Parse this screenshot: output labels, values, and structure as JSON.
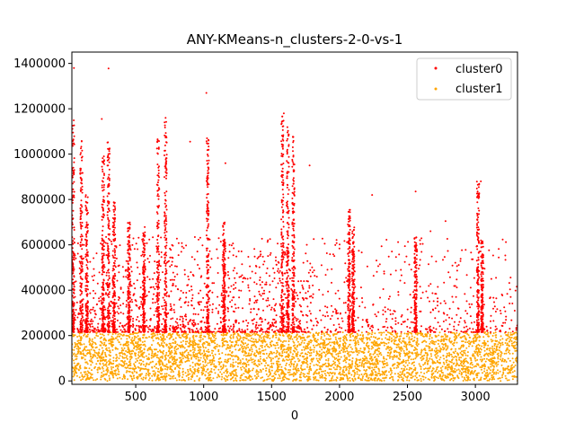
{
  "chart_data": {
    "type": "scatter",
    "title": "ANY-KMeans-n_clusters-2-0-vs-1",
    "xlabel": "0",
    "ylabel": "",
    "xlim": [
      30,
      3310
    ],
    "ylim": [
      -15000,
      1450000
    ],
    "xticks": [
      500,
      1000,
      1500,
      2000,
      2500,
      3000
    ],
    "yticks": [
      0,
      200000,
      400000,
      600000,
      800000,
      1000000,
      1200000,
      1400000
    ],
    "legend_position": "top-right",
    "threshold": 215000,
    "series": [
      {
        "name": "cluster0",
        "color": "#ff0000",
        "range": [
          215000,
          1380000
        ],
        "sample_points": [
          [
            45,
            1380000
          ],
          [
            300,
            1378000
          ],
          [
            1020,
            1270000
          ],
          [
            1590,
            1180000
          ],
          [
            720,
            1160000
          ],
          [
            250,
            1155000
          ],
          [
            2560,
            835000
          ],
          [
            3040,
            880000
          ],
          [
            2240,
            820000
          ],
          [
            2780,
            705000
          ],
          [
            2670,
            660000
          ],
          [
            1780,
            950000
          ],
          [
            1160,
            960000
          ],
          [
            900,
            1055000
          ]
        ]
      },
      {
        "name": "cluster1",
        "color": "#ffa500",
        "range": [
          0,
          215000
        ]
      }
    ],
    "spikes": [
      {
        "x": 40,
        "max": 1150000
      },
      {
        "x": 100,
        "max": 1060000
      },
      {
        "x": 140,
        "max": 820000
      },
      {
        "x": 260,
        "max": 1000000
      },
      {
        "x": 300,
        "max": 1080000
      },
      {
        "x": 340,
        "max": 800000
      },
      {
        "x": 450,
        "max": 700000
      },
      {
        "x": 560,
        "max": 680000
      },
      {
        "x": 665,
        "max": 1070000
      },
      {
        "x": 720,
        "max": 1160000
      },
      {
        "x": 1030,
        "max": 1070000
      },
      {
        "x": 1150,
        "max": 700000
      },
      {
        "x": 1580,
        "max": 1180000
      },
      {
        "x": 1620,
        "max": 1120000
      },
      {
        "x": 1660,
        "max": 1080000
      },
      {
        "x": 2070,
        "max": 760000
      },
      {
        "x": 2100,
        "max": 680000
      },
      {
        "x": 2560,
        "max": 640000
      },
      {
        "x": 3020,
        "max": 880000
      },
      {
        "x": 3050,
        "max": 620000
      }
    ]
  }
}
